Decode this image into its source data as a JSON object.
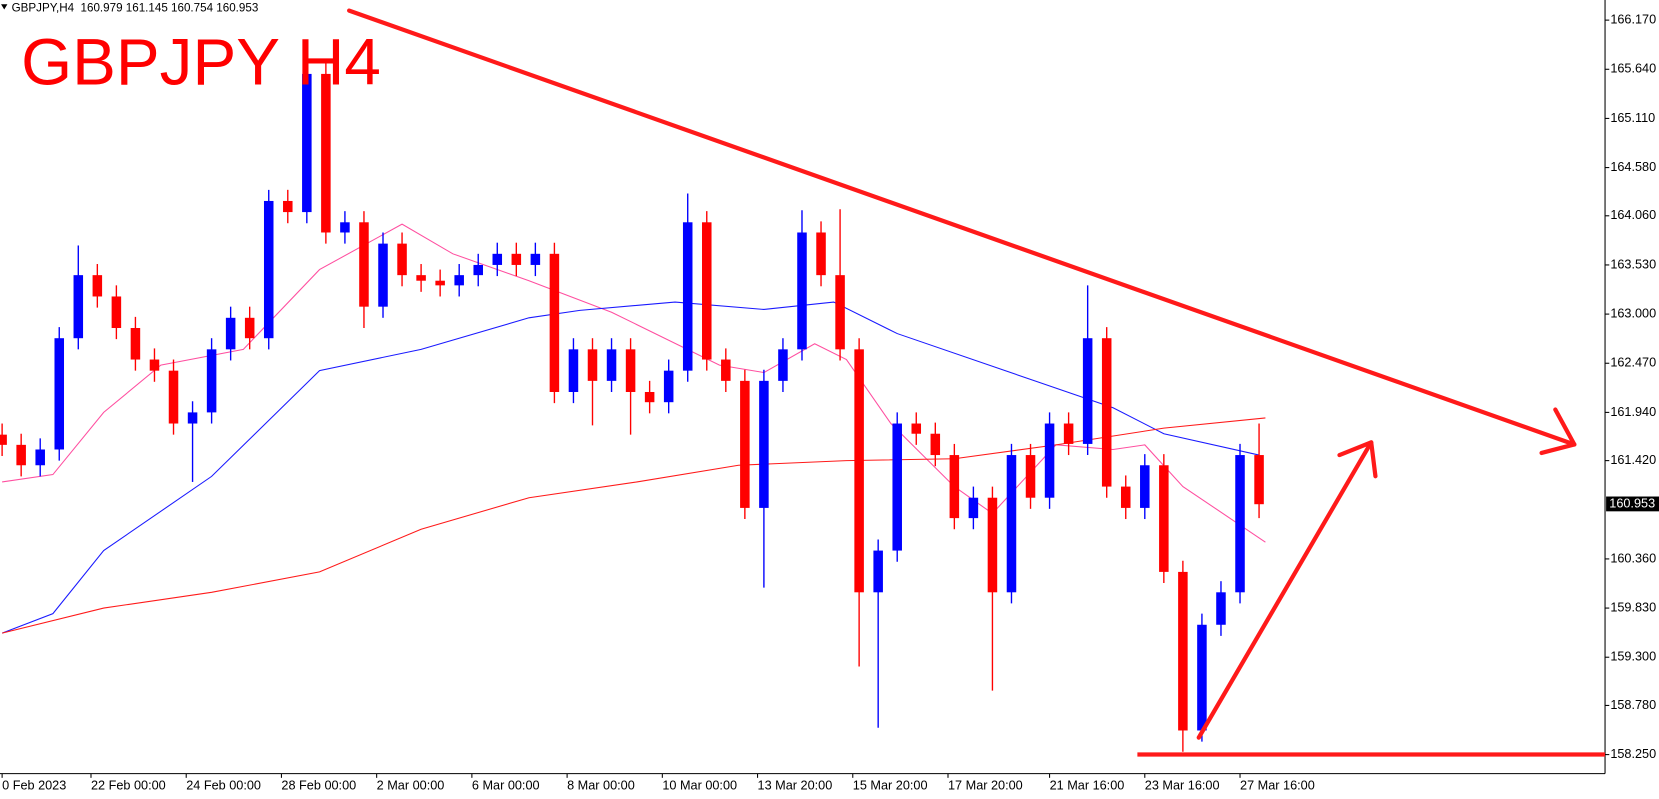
{
  "chart_data": {
    "type": "candlestick",
    "title": "GBPJPY H4",
    "info": "GBPJPY,H4  160.979 161.145 160.754 160.953",
    "up_color": "#0000ff",
    "down_color": "#ff0000",
    "x": [
      0,
      3,
      6,
      9,
      12,
      15,
      18,
      21,
      24,
      27,
      30,
      33,
      36,
      39,
      42,
      45,
      48,
      51,
      54,
      57,
      60,
      63,
      66,
      69,
      72,
      75,
      78,
      81,
      84,
      87,
      90,
      93,
      96,
      99,
      102,
      105,
      108,
      111,
      114,
      117,
      120,
      123,
      126,
      129,
      132,
      135,
      138,
      141,
      144,
      147,
      150,
      153,
      156,
      159,
      162,
      165,
      168,
      171,
      174,
      177,
      180,
      183,
      186,
      189,
      192,
      195,
      198
    ],
    "open": [
      161.7,
      161.59,
      161.37,
      161.54,
      162.74,
      163.42,
      163.19,
      162.85,
      162.51,
      162.39,
      161.82,
      161.94,
      162.62,
      162.96,
      162.74,
      164.22,
      164.1,
      165.59,
      163.88,
      163.99,
      163.08,
      163.76,
      163.42,
      163.36,
      163.31,
      163.42,
      163.53,
      163.65,
      163.53,
      163.65,
      162.16,
      162.62,
      162.28,
      162.62,
      162.16,
      162.05,
      162.39,
      163.99,
      162.51,
      162.28,
      160.91,
      162.28,
      162.62,
      163.88,
      163.42,
      162.62,
      160.0,
      160.45,
      161.82,
      161.71,
      161.48,
      160.8,
      161.02,
      160.0,
      161.48,
      161.02,
      161.82,
      161.6,
      162.74,
      161.14,
      160.91,
      161.37,
      160.22,
      158.51,
      159.65,
      160.0,
      161.48
    ],
    "high": [
      161.82,
      161.71,
      161.66,
      162.86,
      163.74,
      163.54,
      163.31,
      162.97,
      162.63,
      162.51,
      162.06,
      162.74,
      163.08,
      163.08,
      164.34,
      164.34,
      165.93,
      165.71,
      164.11,
      164.11,
      163.88,
      163.88,
      163.54,
      163.48,
      163.54,
      163.65,
      163.77,
      163.77,
      163.77,
      163.77,
      162.74,
      162.74,
      162.74,
      162.74,
      162.28,
      162.51,
      164.3,
      164.11,
      162.63,
      162.4,
      162.4,
      162.74,
      164.12,
      164.0,
      164.13,
      162.74,
      160.57,
      161.94,
      161.94,
      161.83,
      161.6,
      161.14,
      161.14,
      161.6,
      161.6,
      161.94,
      161.94,
      163.31,
      162.86,
      161.26,
      161.49,
      161.49,
      160.34,
      159.77,
      160.12,
      161.6,
      161.82
    ],
    "low": [
      161.47,
      161.25,
      161.25,
      161.42,
      162.62,
      163.07,
      162.73,
      162.39,
      162.27,
      161.7,
      161.19,
      161.82,
      162.5,
      162.62,
      162.62,
      163.98,
      163.98,
      163.76,
      163.76,
      162.85,
      162.96,
      163.3,
      163.24,
      163.19,
      163.19,
      163.3,
      163.41,
      163.41,
      163.41,
      162.04,
      162.04,
      161.8,
      162.16,
      161.7,
      161.93,
      161.93,
      162.27,
      162.39,
      162.16,
      160.79,
      160.05,
      162.16,
      162.5,
      163.3,
      162.5,
      159.2,
      158.54,
      160.33,
      161.59,
      161.36,
      160.68,
      160.68,
      158.94,
      159.88,
      160.9,
      160.9,
      161.48,
      161.48,
      161.02,
      160.79,
      160.79,
      160.1,
      158.28,
      158.39,
      159.53,
      159.88,
      160.8
    ],
    "close": [
      161.59,
      161.37,
      161.54,
      162.74,
      163.42,
      163.19,
      162.85,
      162.51,
      162.39,
      161.82,
      161.94,
      162.62,
      162.96,
      162.74,
      164.22,
      164.1,
      165.59,
      163.88,
      163.99,
      163.08,
      163.76,
      163.42,
      163.36,
      163.31,
      163.42,
      163.53,
      163.65,
      163.53,
      163.65,
      162.16,
      162.62,
      162.28,
      162.62,
      162.16,
      162.05,
      162.39,
      163.99,
      162.51,
      162.28,
      160.91,
      162.28,
      162.62,
      163.88,
      163.42,
      162.62,
      160.0,
      160.45,
      161.82,
      161.71,
      161.48,
      160.8,
      161.02,
      160.0,
      161.48,
      161.02,
      161.82,
      161.6,
      162.74,
      161.14,
      160.91,
      161.37,
      160.22,
      158.51,
      159.65,
      160.0,
      161.48,
      160.95
    ],
    "overlays": [
      {
        "color": "#ff4fa0",
        "x": [
          0,
          8,
          16,
          25,
          38,
          50,
          63,
          71,
          83,
          96,
          113,
          120,
          128,
          133,
          140,
          150,
          156,
          166,
          175,
          180,
          186,
          191,
          199
        ],
        "values": [
          161.19,
          161.27,
          161.94,
          162.45,
          162.62,
          163.48,
          163.97,
          163.65,
          163.36,
          163.02,
          162.45,
          162.37,
          162.68,
          162.51,
          161.82,
          161.14,
          160.85,
          161.59,
          161.54,
          161.59,
          161.14,
          160.91,
          160.54
        ]
      },
      {
        "color": "#1a1aff",
        "x": [
          0,
          8,
          16,
          33,
          50,
          66,
          83,
          91,
          106,
          120,
          131,
          141,
          158,
          175,
          183,
          198
        ],
        "values": [
          159.56,
          159.77,
          160.45,
          161.25,
          162.39,
          162.62,
          162.96,
          163.04,
          163.13,
          163.05,
          163.13,
          162.79,
          162.39,
          161.99,
          161.71,
          161.48
        ]
      },
      {
        "color": "#ff1a1a",
        "x": [
          0,
          16,
          33,
          50,
          66,
          83,
          100,
          116,
          133,
          150,
          166,
          183,
          199
        ],
        "values": [
          159.56,
          159.83,
          160.0,
          160.22,
          160.68,
          161.02,
          161.19,
          161.37,
          161.42,
          161.44,
          161.59,
          161.77,
          161.88
        ]
      }
    ],
    "current_price": {
      "value": 160.953,
      "label": "160.953"
    },
    "xlim": [
      -0.333,
      252.5
    ],
    "ylim": [
      158.045,
      166.387
    ],
    "xticks": [
      {
        "value": 0,
        "label": "0 Feb 2023"
      },
      {
        "value": 14,
        "label": "22 Feb 00:00"
      },
      {
        "value": 29,
        "label": "24 Feb 00:00"
      },
      {
        "value": 44,
        "label": "28 Feb 00:00"
      },
      {
        "value": 59,
        "label": "2 Mar 00:00"
      },
      {
        "value": 74,
        "label": "6 Mar 00:00"
      },
      {
        "value": 89,
        "label": "8 Mar 00:00"
      },
      {
        "value": 104,
        "label": "10 Mar 00:00"
      },
      {
        "value": 119,
        "label": "13 Mar 20:00"
      },
      {
        "value": 134,
        "label": "15 Mar 20:00"
      },
      {
        "value": 149,
        "label": "17 Mar 20:00"
      },
      {
        "value": 165,
        "label": "21 Mar 16:00"
      },
      {
        "value": 180,
        "label": "23 Mar 16:00"
      },
      {
        "value": 195,
        "label": "27 Mar 16:00"
      }
    ],
    "yticks": [
      {
        "value": 166.17,
        "label": "166.170"
      },
      {
        "value": 165.64,
        "label": "165.640"
      },
      {
        "value": 165.11,
        "label": "165.110"
      },
      {
        "value": 164.58,
        "label": "164.580"
      },
      {
        "value": 164.06,
        "label": "164.060"
      },
      {
        "value": 163.53,
        "label": "163.530"
      },
      {
        "value": 163.0,
        "label": "163.000"
      },
      {
        "value": 162.47,
        "label": "162.470"
      },
      {
        "value": 161.94,
        "label": "161.940"
      },
      {
        "value": 161.42,
        "label": "161.420"
      },
      {
        "value": 160.36,
        "label": "160.360"
      },
      {
        "value": 159.83,
        "label": "159.830"
      },
      {
        "value": 159.3,
        "label": "159.300"
      },
      {
        "value": 158.78,
        "label": "158.780"
      },
      {
        "value": 158.25,
        "label": "158.250"
      }
    ]
  }
}
